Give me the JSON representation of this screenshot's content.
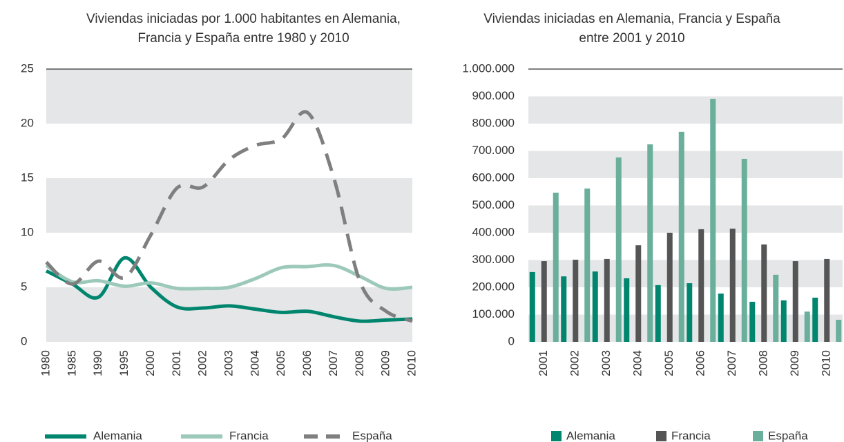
{
  "chart_data": [
    {
      "type": "line",
      "title": "Viviendas iniciadas por 1.000 habitantes en Alemania, Francia y España entre 1980 y 2010",
      "categories": [
        "1980",
        "1985",
        "1990",
        "1995",
        "2000",
        "2001",
        "2002",
        "2003",
        "2004",
        "2005",
        "2006",
        "2007",
        "2008",
        "2009",
        "2010"
      ],
      "series": [
        {
          "name": "Alemania",
          "color": "#00866e",
          "values": [
            6.5,
            5.3,
            4.1,
            7.7,
            5.0,
            3.2,
            3.1,
            3.3,
            3.0,
            2.7,
            2.8,
            2.3,
            1.9,
            2.0,
            2.1
          ]
        },
        {
          "name": "Francia",
          "color": "#9dc9bb",
          "values": [
            7.0,
            5.5,
            5.6,
            5.1,
            5.4,
            4.9,
            4.9,
            5.0,
            5.8,
            6.8,
            6.9,
            7.0,
            6.0,
            4.9,
            5.0
          ]
        },
        {
          "name": "España",
          "color": "#7f7f7f",
          "dashed": true,
          "values": [
            7.3,
            5.3,
            7.4,
            5.9,
            9.8,
            14.1,
            14.2,
            16.7,
            18.0,
            18.6,
            21.0,
            15.0,
            5.5,
            2.8,
            1.9
          ]
        }
      ],
      "ylim": [
        0,
        25
      ],
      "yticks": [
        0,
        5,
        10,
        15,
        20,
        25
      ],
      "grid": true
    },
    {
      "type": "bar",
      "title": "Viviendas iniciadas en Alemania, Francia y España entre 2001 y 2010",
      "categories": [
        "2001",
        "2002",
        "2003",
        "2004",
        "2005",
        "2006",
        "2007",
        "2008",
        "2009",
        "2010"
      ],
      "series": [
        {
          "name": "Alemania",
          "color": "#00866e",
          "values": [
            256000,
            240000,
            258000,
            233000,
            208000,
            215000,
            177000,
            147000,
            152000,
            162000
          ]
        },
        {
          "name": "Francia",
          "color": "#555555",
          "values": [
            296000,
            301000,
            304000,
            354000,
            400000,
            413000,
            415000,
            357000,
            296000,
            304000
          ]
        },
        {
          "name": "España",
          "color": "#6aaf9c",
          "values": [
            547000,
            562000,
            676000,
            724000,
            770000,
            891000,
            671000,
            246000,
            111000,
            81000
          ]
        }
      ],
      "ylim": [
        0,
        1000000
      ],
      "yticks": [
        0,
        {
          "value": 100000,
          "label": "100.000"
        },
        {
          "value": 200000,
          "label": "200.000"
        },
        {
          "value": 300000,
          "label": "300.000"
        },
        {
          "value": 400000,
          "label": "400.000"
        },
        {
          "value": 500000,
          "label": "500.000"
        },
        {
          "value": 600000,
          "label": "600.000"
        },
        {
          "value": 700000,
          "label": "700.000"
        },
        {
          "value": 800000,
          "label": "800.000"
        },
        {
          "value": 900000,
          "label": "900.000"
        },
        {
          "value": 1000000,
          "label": "1.000.000"
        }
      ],
      "grid": true
    }
  ]
}
